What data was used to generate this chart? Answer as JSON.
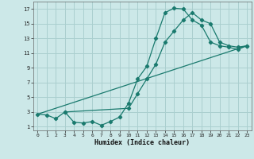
{
  "xlabel": "Humidex (Indice chaleur)",
  "background_color": "#cce8e8",
  "grid_color": "#aacfcf",
  "line_color": "#1a7a6e",
  "xlim": [
    -0.5,
    23.5
  ],
  "ylim": [
    0.5,
    18.0
  ],
  "xticks": [
    0,
    1,
    2,
    3,
    4,
    5,
    6,
    7,
    8,
    9,
    10,
    11,
    12,
    13,
    14,
    15,
    16,
    17,
    18,
    19,
    20,
    21,
    22,
    23
  ],
  "yticks": [
    1,
    3,
    5,
    7,
    9,
    11,
    13,
    15,
    17
  ],
  "curve1_x": [
    0,
    1,
    2,
    3,
    4,
    5,
    6,
    7,
    8,
    9,
    10,
    11,
    12,
    13,
    14,
    15,
    16,
    17,
    18,
    19,
    20,
    21,
    22,
    23
  ],
  "curve1_y": [
    2.7,
    2.6,
    2.1,
    3.0,
    1.6,
    1.5,
    1.7,
    1.2,
    1.7,
    2.3,
    4.2,
    7.5,
    9.2,
    13.0,
    16.5,
    17.1,
    17.0,
    15.5,
    14.8,
    12.5,
    12.0,
    11.8,
    11.5,
    12.0
  ],
  "curve2_x": [
    3,
    10,
    11,
    12,
    13,
    14,
    15,
    16,
    17,
    18,
    19,
    20,
    21,
    22,
    23
  ],
  "curve2_y": [
    3.0,
    3.5,
    5.5,
    7.5,
    9.5,
    12.5,
    14.0,
    15.5,
    16.5,
    15.5,
    15.0,
    12.5,
    12.0,
    11.8,
    12.0
  ],
  "curve3_x": [
    0,
    23
  ],
  "curve3_y": [
    2.7,
    12.0
  ]
}
